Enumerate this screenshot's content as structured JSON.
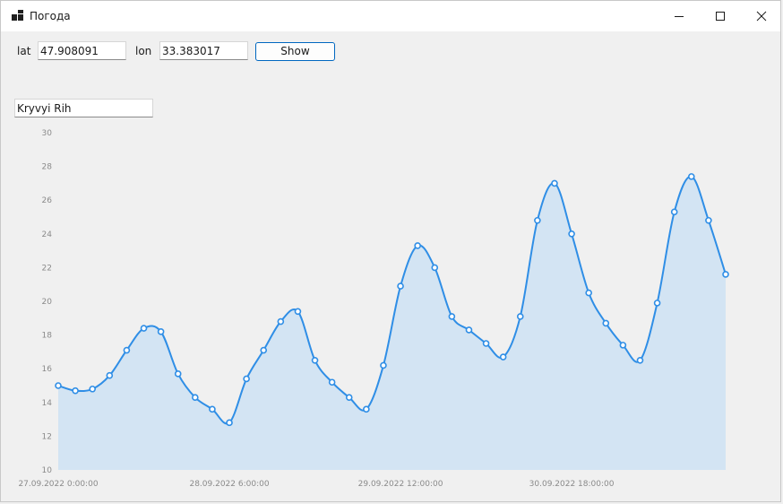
{
  "window": {
    "title": "Погода"
  },
  "form": {
    "lat_label": "lat",
    "lat_value": "47.908091",
    "lon_label": "lon",
    "lon_value": "33.383017",
    "show_label": "Show",
    "city_value": "Kryvyi Rih"
  },
  "colors": {
    "line": "#2f8ee6",
    "area": "#d3e4f3",
    "accent": "#0067c0"
  },
  "chart_data": {
    "type": "area",
    "ylim": [
      10,
      30
    ],
    "y_ticks": [
      10,
      12,
      14,
      16,
      18,
      20,
      22,
      24,
      26,
      28,
      30
    ],
    "x_labels": [
      "27.09.2022 0:00:00",
      "28.09.2022 6:00:00",
      "29.09.2022 12:00:00",
      "30.09.2022 18:00:00"
    ],
    "x_label_indices": [
      0,
      10,
      20,
      30
    ],
    "values": [
      15.0,
      14.7,
      14.8,
      15.6,
      17.1,
      18.4,
      18.2,
      15.7,
      14.3,
      13.6,
      12.8,
      15.4,
      17.1,
      18.8,
      19.4,
      16.5,
      15.2,
      14.3,
      13.6,
      16.2,
      20.9,
      23.3,
      22.0,
      19.1,
      18.3,
      17.5,
      16.7,
      19.1,
      24.8,
      27.0,
      24.0,
      20.5,
      18.7,
      17.4,
      16.5,
      19.9,
      25.3,
      27.4,
      24.8,
      21.6
    ]
  }
}
